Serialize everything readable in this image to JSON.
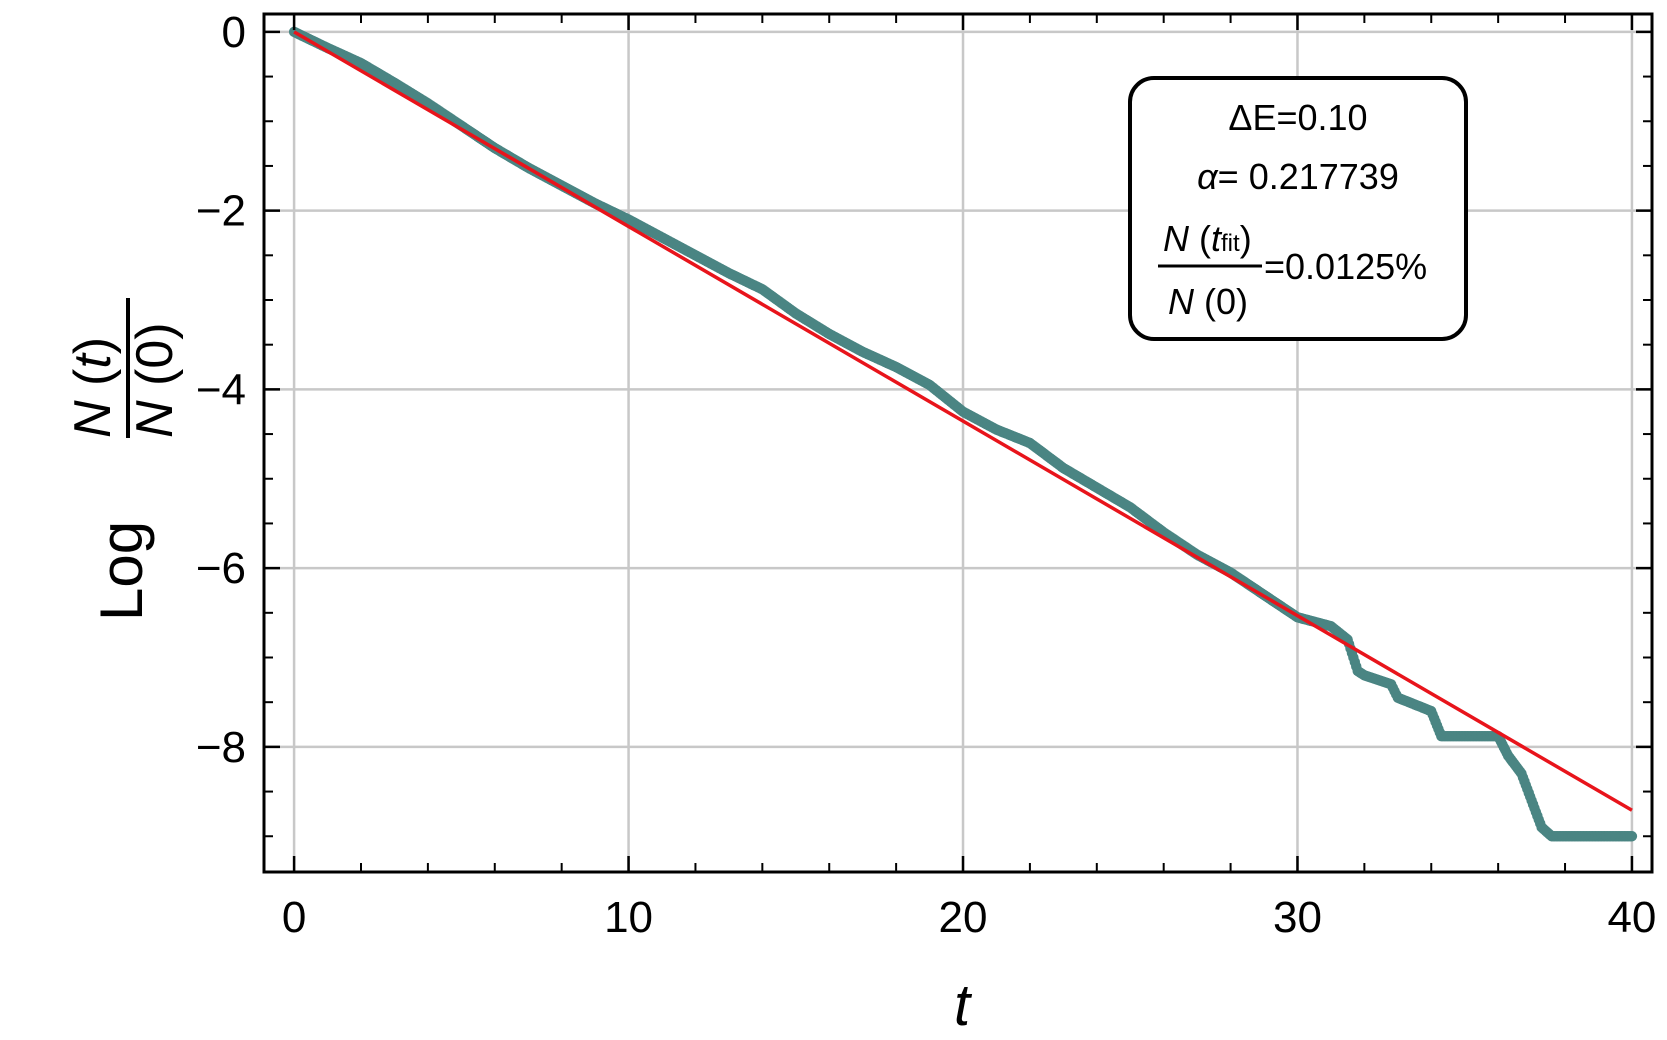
{
  "chart_data": {
    "type": "scatter",
    "title": "",
    "xlabel": "t",
    "ylabel": {
      "prefix": "Log",
      "numerator_symbol": "N",
      "numerator_arg": "t",
      "denominator_symbol": "N",
      "denominator_arg": "0"
    },
    "xlim": [
      -0.9,
      40.6
    ],
    "ylim": [
      -9.4,
      0.2
    ],
    "xticks": [
      0,
      10,
      20,
      30,
      40
    ],
    "xtick_labels": [
      "0",
      "10",
      "20",
      "30",
      "40"
    ],
    "yticks": [
      0,
      -2,
      -4,
      -6,
      -8
    ],
    "ytick_labels": [
      "0",
      "−2",
      "−4",
      "−6",
      "−8"
    ],
    "grid": true,
    "legend_placement": "top-right",
    "colors": {
      "data": "#4a8583",
      "fit": "#e8141b",
      "grid": "#c8c8c8",
      "frame": "#000000"
    },
    "series": [
      {
        "kind": "points",
        "points": [
          [
            0,
            0
          ],
          [
            1,
            -0.18
          ],
          [
            2,
            -0.35
          ],
          [
            3,
            -0.57
          ],
          [
            4,
            -0.8
          ],
          [
            5,
            -1.05
          ],
          [
            6,
            -1.3
          ],
          [
            7,
            -1.52
          ],
          [
            8,
            -1.72
          ],
          [
            9,
            -1.92
          ],
          [
            10,
            -2.1
          ],
          [
            11,
            -2.3
          ],
          [
            12,
            -2.5
          ],
          [
            13,
            -2.7
          ],
          [
            14,
            -2.88
          ],
          [
            15,
            -3.15
          ],
          [
            16,
            -3.38
          ],
          [
            17,
            -3.58
          ],
          [
            18,
            -3.75
          ],
          [
            19,
            -3.95
          ],
          [
            20,
            -4.25
          ],
          [
            21,
            -4.45
          ],
          [
            22,
            -4.6
          ],
          [
            23,
            -4.88
          ],
          [
            24,
            -5.1
          ],
          [
            25,
            -5.32
          ],
          [
            26,
            -5.6
          ],
          [
            27,
            -5.85
          ],
          [
            28,
            -6.05
          ],
          [
            29,
            -6.3
          ],
          [
            30,
            -6.55
          ],
          [
            31,
            -6.65
          ],
          [
            31.5,
            -6.8
          ],
          [
            31.8,
            -7.15
          ],
          [
            32,
            -7.2
          ],
          [
            32.8,
            -7.3
          ],
          [
            33,
            -7.45
          ],
          [
            34,
            -7.6
          ],
          [
            34.3,
            -7.88
          ],
          [
            36,
            -7.88
          ],
          [
            36.3,
            -8.1
          ],
          [
            36.7,
            -8.3
          ],
          [
            37,
            -8.6
          ],
          [
            37.3,
            -8.9
          ],
          [
            37.6,
            -9.0
          ],
          [
            40,
            -9.0
          ]
        ]
      },
      {
        "kind": "fit_line",
        "slope": -0.217739,
        "intercept": 0,
        "x_range": [
          0,
          40
        ]
      }
    ],
    "legend": {
      "line1": "ΔE=0.10",
      "alpha_symbol": "α",
      "alpha_value": "= 0.217739",
      "ratio_numerator": "N",
      "ratio_numerator_arg": "t",
      "ratio_numerator_sub": "fit",
      "ratio_denominator": "N",
      "ratio_denominator_arg": "(0)",
      "ratio_value": "=0.0125%"
    }
  }
}
